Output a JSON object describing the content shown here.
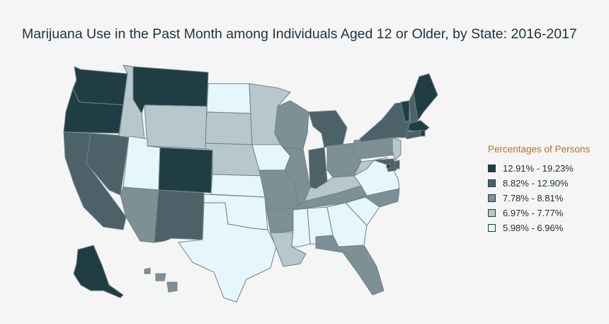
{
  "title": "Marijuana Use in the Past Month among Individuals Aged 12 or Older, by State: 2016-2017",
  "legend": {
    "title": "Percentages of Persons",
    "items": [
      {
        "label": "12.91% - 19.23%",
        "color": "#1f3d42"
      },
      {
        "label": "8.82% - 12.90%",
        "color": "#4c6268"
      },
      {
        "label": "7.78% - 8.81%",
        "color": "#7c9096"
      },
      {
        "label": "6.97% - 7.77%",
        "color": "#b6c8cc"
      },
      {
        "label": "5.98% - 6.96%",
        "color": "#e5f7fb"
      }
    ]
  },
  "chart_data": {
    "type": "choropleth",
    "region": "United States",
    "classes": [
      "12.91% - 19.23%",
      "8.82% - 12.90%",
      "7.78% - 8.81%",
      "6.97% - 7.77%",
      "5.98% - 6.96%"
    ],
    "states": [
      {
        "name": "WA",
        "class": 0
      },
      {
        "name": "OR",
        "class": 0
      },
      {
        "name": "CA",
        "class": 1
      },
      {
        "name": "NV",
        "class": 1
      },
      {
        "name": "ID",
        "class": 3
      },
      {
        "name": "MT",
        "class": 0
      },
      {
        "name": "WY",
        "class": 3
      },
      {
        "name": "UT",
        "class": 4
      },
      {
        "name": "AZ",
        "class": 2
      },
      {
        "name": "CO",
        "class": 0
      },
      {
        "name": "NM",
        "class": 1
      },
      {
        "name": "ND",
        "class": 4
      },
      {
        "name": "SD",
        "class": 3
      },
      {
        "name": "NE",
        "class": 3
      },
      {
        "name": "KS",
        "class": 4
      },
      {
        "name": "OK",
        "class": 4
      },
      {
        "name": "TX",
        "class": 4
      },
      {
        "name": "MN",
        "class": 3
      },
      {
        "name": "IA",
        "class": 4
      },
      {
        "name": "MO",
        "class": 2
      },
      {
        "name": "AR",
        "class": 2
      },
      {
        "name": "LA",
        "class": 3
      },
      {
        "name": "WI",
        "class": 2
      },
      {
        "name": "IL",
        "class": 2
      },
      {
        "name": "MI",
        "class": 1
      },
      {
        "name": "IN",
        "class": 1
      },
      {
        "name": "OH",
        "class": 2
      },
      {
        "name": "KY",
        "class": 3
      },
      {
        "name": "TN",
        "class": 2
      },
      {
        "name": "MS",
        "class": 4
      },
      {
        "name": "AL",
        "class": 4
      },
      {
        "name": "GA",
        "class": 4
      },
      {
        "name": "FL",
        "class": 2
      },
      {
        "name": "SC",
        "class": 4
      },
      {
        "name": "NC",
        "class": 2
      },
      {
        "name": "VA",
        "class": 4
      },
      {
        "name": "WV",
        "class": 3
      },
      {
        "name": "PA",
        "class": 2
      },
      {
        "name": "NY",
        "class": 1
      },
      {
        "name": "VT",
        "class": 0
      },
      {
        "name": "NH",
        "class": 1
      },
      {
        "name": "ME",
        "class": 0
      },
      {
        "name": "MA",
        "class": 0
      },
      {
        "name": "RI",
        "class": 0
      },
      {
        "name": "CT",
        "class": 1
      },
      {
        "name": "NJ",
        "class": 3
      },
      {
        "name": "DE",
        "class": 1
      },
      {
        "name": "MD",
        "class": 1
      },
      {
        "name": "DC",
        "class": 0
      },
      {
        "name": "AK",
        "class": 0
      },
      {
        "name": "HI",
        "class": 2
      }
    ]
  }
}
